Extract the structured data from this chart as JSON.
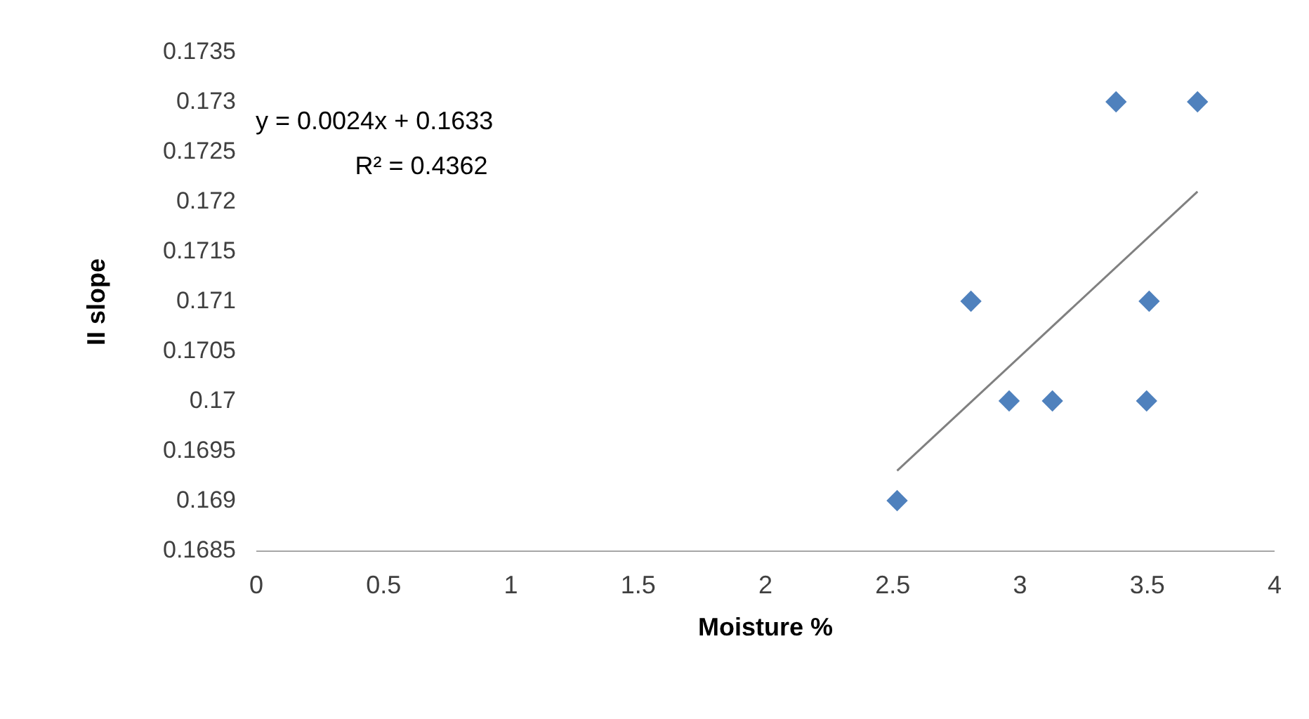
{
  "chart_data": {
    "type": "scatter",
    "xlabel": "Moisture %",
    "ylabel": "II slope",
    "annotations": [
      "y = 0.0024x + 0.1633",
      "R² = 0.4362"
    ],
    "series": [
      {
        "color": "#4f81bd",
        "marker": "diamond",
        "x": [
          2.52,
          2.81,
          2.96,
          3.13,
          3.38,
          3.7,
          3.51,
          3.5
        ],
        "values": [
          0.169,
          0.171,
          0.17,
          0.17,
          0.173,
          0.173,
          0.171,
          0.17
        ]
      },
      {
        "type": "line",
        "color": "#808080",
        "marker": "none",
        "x": [
          2.52,
          3.7
        ],
        "values": [
          0.1693,
          0.1721
        ]
      }
    ],
    "xlim": [
      0,
      4
    ],
    "xticks": [
      0,
      0.5,
      1,
      1.5,
      2,
      2.5,
      3,
      3.5,
      4
    ],
    "ylim": [
      0.1685,
      0.1735
    ],
    "yticks": [
      0.1685,
      0.169,
      0.1695,
      0.17,
      0.1705,
      0.171,
      0.1715,
      0.172,
      0.1725,
      0.173,
      0.1735
    ],
    "grid": false
  }
}
